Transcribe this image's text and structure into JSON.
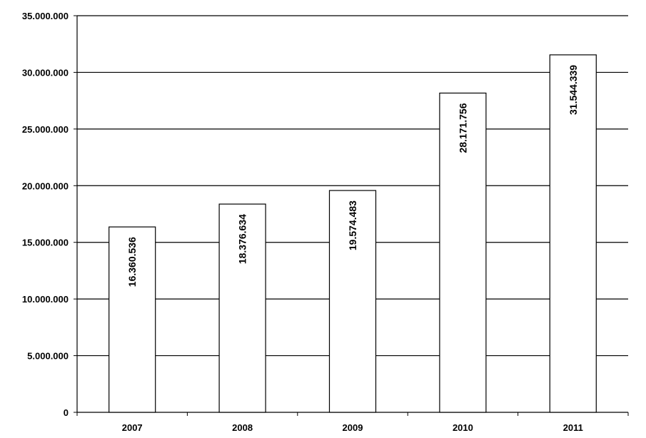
{
  "chart_data": {
    "type": "bar",
    "title": "",
    "xlabel": "",
    "ylabel": "",
    "categories": [
      "2007",
      "2008",
      "2009",
      "2010",
      "2011"
    ],
    "values": [
      16360536,
      18376634,
      19574483,
      28171756,
      31544339
    ],
    "value_labels": [
      "16.360.536",
      "18.376.634",
      "19.574.483",
      "28.171.756",
      "31.544.339"
    ],
    "ylim": [
      0,
      35000000
    ],
    "yticks": [
      0,
      5000000,
      10000000,
      15000000,
      20000000,
      25000000,
      30000000,
      35000000
    ],
    "ytick_labels": [
      "0",
      "5.000.000",
      "10.000.000",
      "15.000.000",
      "20.000.000",
      "25.000.000",
      "30.000.000",
      "35.000.000"
    ],
    "grid": true,
    "legend": "none",
    "colors": {
      "bar_fill": "#ffffff",
      "bar_stroke": "#000000",
      "grid": "#000000",
      "text": "#000000"
    }
  }
}
